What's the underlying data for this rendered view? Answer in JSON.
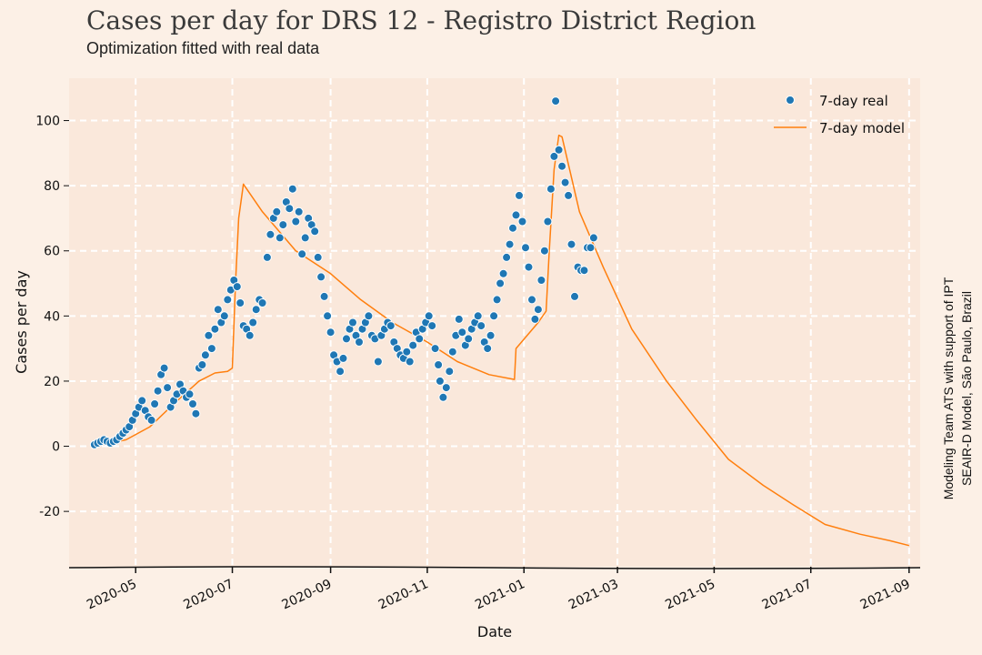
{
  "chart_data": {
    "type": "scatter",
    "title": "Cases per day for DRS 12 - Registro District Region",
    "subtitle": "Optimization fitted with real data",
    "xlabel": "Date",
    "ylabel": "Cases per day",
    "side_note": [
      "Modeling Team ATS with support of IPT",
      "SEAIR-D Model, São Paulo, Brazil"
    ],
    "xlim": [
      "2020-03-20",
      "2021-09-08"
    ],
    "ylim": [
      -37,
      113
    ],
    "x_ticks": [
      "2020-05",
      "2020-07",
      "2020-09",
      "2020-11",
      "2021-01",
      "2021-03",
      "2021-05",
      "2021-07",
      "2021-09"
    ],
    "y_ticks": [
      -20,
      0,
      20,
      40,
      60,
      80,
      100
    ],
    "grid": true,
    "legend_position": "top-right",
    "colors": {
      "real": "#1f77b4",
      "model": "#ff7f0e",
      "grid": "#ffffff",
      "plot_bg": "#fae8db",
      "page_bg": "#fcf0e6"
    },
    "series": [
      {
        "name": "7-day real",
        "kind": "scatter",
        "points": [
          [
            "2020-04-05",
            0.5
          ],
          [
            "2020-04-07",
            1
          ],
          [
            "2020-04-09",
            1.5
          ],
          [
            "2020-04-11",
            2
          ],
          [
            "2020-04-13",
            1.5
          ],
          [
            "2020-04-15",
            1
          ],
          [
            "2020-04-17",
            1.5
          ],
          [
            "2020-04-19",
            2
          ],
          [
            "2020-04-21",
            3
          ],
          [
            "2020-04-23",
            4
          ],
          [
            "2020-04-25",
            5
          ],
          [
            "2020-04-27",
            6
          ],
          [
            "2020-04-29",
            8
          ],
          [
            "2020-05-01",
            10
          ],
          [
            "2020-05-03",
            12
          ],
          [
            "2020-05-05",
            14
          ],
          [
            "2020-05-07",
            11
          ],
          [
            "2020-05-09",
            9
          ],
          [
            "2020-05-11",
            8
          ],
          [
            "2020-05-13",
            13
          ],
          [
            "2020-05-15",
            17
          ],
          [
            "2020-05-17",
            22
          ],
          [
            "2020-05-19",
            24
          ],
          [
            "2020-05-21",
            18
          ],
          [
            "2020-05-23",
            12
          ],
          [
            "2020-05-25",
            14
          ],
          [
            "2020-05-27",
            16
          ],
          [
            "2020-05-29",
            19
          ],
          [
            "2020-05-31",
            17
          ],
          [
            "2020-06-02",
            15
          ],
          [
            "2020-06-04",
            16
          ],
          [
            "2020-06-06",
            13
          ],
          [
            "2020-06-08",
            10
          ],
          [
            "2020-06-10",
            24
          ],
          [
            "2020-06-12",
            25
          ],
          [
            "2020-06-14",
            28
          ],
          [
            "2020-06-16",
            34
          ],
          [
            "2020-06-18",
            30
          ],
          [
            "2020-06-20",
            36
          ],
          [
            "2020-06-22",
            42
          ],
          [
            "2020-06-24",
            38
          ],
          [
            "2020-06-26",
            40
          ],
          [
            "2020-06-28",
            45
          ],
          [
            "2020-06-30",
            48
          ],
          [
            "2020-07-02",
            51
          ],
          [
            "2020-07-04",
            49
          ],
          [
            "2020-07-06",
            44
          ],
          [
            "2020-07-08",
            37
          ],
          [
            "2020-07-10",
            36
          ],
          [
            "2020-07-12",
            34
          ],
          [
            "2020-07-14",
            38
          ],
          [
            "2020-07-16",
            42
          ],
          [
            "2020-07-18",
            45
          ],
          [
            "2020-07-20",
            44
          ],
          [
            "2020-07-23",
            58
          ],
          [
            "2020-07-25",
            65
          ],
          [
            "2020-07-27",
            70
          ],
          [
            "2020-07-29",
            72
          ],
          [
            "2020-07-31",
            64
          ],
          [
            "2020-08-02",
            68
          ],
          [
            "2020-08-04",
            75
          ],
          [
            "2020-08-06",
            73
          ],
          [
            "2020-08-08",
            79
          ],
          [
            "2020-08-10",
            69
          ],
          [
            "2020-08-12",
            72
          ],
          [
            "2020-08-14",
            59
          ],
          [
            "2020-08-16",
            64
          ],
          [
            "2020-08-18",
            70
          ],
          [
            "2020-08-20",
            68
          ],
          [
            "2020-08-22",
            66
          ],
          [
            "2020-08-24",
            58
          ],
          [
            "2020-08-26",
            52
          ],
          [
            "2020-08-28",
            46
          ],
          [
            "2020-08-30",
            40
          ],
          [
            "2020-09-01",
            35
          ],
          [
            "2020-09-03",
            28
          ],
          [
            "2020-09-05",
            26
          ],
          [
            "2020-09-07",
            23
          ],
          [
            "2020-09-09",
            27
          ],
          [
            "2020-09-11",
            33
          ],
          [
            "2020-09-13",
            36
          ],
          [
            "2020-09-15",
            38
          ],
          [
            "2020-09-17",
            34
          ],
          [
            "2020-09-19",
            32
          ],
          [
            "2020-09-21",
            36
          ],
          [
            "2020-09-23",
            38
          ],
          [
            "2020-09-25",
            40
          ],
          [
            "2020-09-27",
            34
          ],
          [
            "2020-09-29",
            33
          ],
          [
            "2020-10-01",
            26
          ],
          [
            "2020-10-03",
            34
          ],
          [
            "2020-10-05",
            36
          ],
          [
            "2020-10-07",
            38
          ],
          [
            "2020-10-09",
            37
          ],
          [
            "2020-10-11",
            32
          ],
          [
            "2020-10-13",
            30
          ],
          [
            "2020-10-15",
            28
          ],
          [
            "2020-10-17",
            27
          ],
          [
            "2020-10-19",
            29
          ],
          [
            "2020-10-21",
            26
          ],
          [
            "2020-10-23",
            31
          ],
          [
            "2020-10-25",
            35
          ],
          [
            "2020-10-27",
            33
          ],
          [
            "2020-10-29",
            36
          ],
          [
            "2020-10-31",
            38
          ],
          [
            "2020-11-02",
            40
          ],
          [
            "2020-11-04",
            37
          ],
          [
            "2020-11-06",
            30
          ],
          [
            "2020-11-08",
            25
          ],
          [
            "2020-11-09",
            20
          ],
          [
            "2020-11-11",
            15
          ],
          [
            "2020-11-13",
            18
          ],
          [
            "2020-11-15",
            23
          ],
          [
            "2020-11-17",
            29
          ],
          [
            "2020-11-19",
            34
          ],
          [
            "2020-11-21",
            39
          ],
          [
            "2020-11-23",
            35
          ],
          [
            "2020-11-25",
            31
          ],
          [
            "2020-11-27",
            33
          ],
          [
            "2020-11-29",
            36
          ],
          [
            "2020-12-01",
            38
          ],
          [
            "2020-12-03",
            40
          ],
          [
            "2020-12-05",
            37
          ],
          [
            "2020-12-07",
            32
          ],
          [
            "2020-12-09",
            30
          ],
          [
            "2020-12-11",
            34
          ],
          [
            "2020-12-13",
            40
          ],
          [
            "2020-12-15",
            45
          ],
          [
            "2020-12-17",
            50
          ],
          [
            "2020-12-19",
            53
          ],
          [
            "2020-12-21",
            58
          ],
          [
            "2020-12-23",
            62
          ],
          [
            "2020-12-25",
            67
          ],
          [
            "2020-12-27",
            71
          ],
          [
            "2020-12-29",
            77
          ],
          [
            "2020-12-31",
            69
          ],
          [
            "2021-01-02",
            61
          ],
          [
            "2021-01-04",
            55
          ],
          [
            "2021-01-06",
            45
          ],
          [
            "2021-01-08",
            39
          ],
          [
            "2021-01-10",
            42
          ],
          [
            "2021-01-12",
            51
          ],
          [
            "2021-01-14",
            60
          ],
          [
            "2021-01-16",
            69
          ],
          [
            "2021-01-18",
            79
          ],
          [
            "2021-01-20",
            89
          ],
          [
            "2021-01-21",
            106
          ],
          [
            "2021-01-23",
            91
          ],
          [
            "2021-01-25",
            86
          ],
          [
            "2021-01-27",
            81
          ],
          [
            "2021-01-29",
            77
          ],
          [
            "2021-01-31",
            62
          ],
          [
            "2021-02-02",
            46
          ],
          [
            "2021-02-04",
            55
          ],
          [
            "2021-02-06",
            54
          ],
          [
            "2021-02-08",
            54
          ],
          [
            "2021-02-10",
            61
          ],
          [
            "2021-02-12",
            61
          ],
          [
            "2021-02-14",
            64
          ]
        ]
      },
      {
        "name": "7-day model",
        "kind": "line",
        "points": [
          [
            "2020-04-05",
            0
          ],
          [
            "2020-04-25",
            2
          ],
          [
            "2020-05-10",
            6
          ],
          [
            "2020-05-25",
            13
          ],
          [
            "2020-06-10",
            20
          ],
          [
            "2020-06-20",
            22.5
          ],
          [
            "2020-06-28",
            23
          ],
          [
            "2020-07-01",
            24
          ],
          [
            "2020-07-03",
            50
          ],
          [
            "2020-07-05",
            70
          ],
          [
            "2020-07-08",
            80.5
          ],
          [
            "2020-07-20",
            72
          ],
          [
            "2020-08-10",
            60
          ],
          [
            "2020-09-01",
            53
          ],
          [
            "2020-09-20",
            45
          ],
          [
            "2020-10-10",
            38
          ],
          [
            "2020-11-01",
            32
          ],
          [
            "2020-11-20",
            26
          ],
          [
            "2020-12-10",
            22
          ],
          [
            "2020-12-26",
            20.5
          ],
          [
            "2020-12-27",
            30
          ],
          [
            "2021-01-10",
            38
          ],
          [
            "2021-01-15",
            41.5
          ],
          [
            "2021-01-17",
            60
          ],
          [
            "2021-01-20",
            85
          ],
          [
            "2021-01-23",
            95.5
          ],
          [
            "2021-01-25",
            95
          ],
          [
            "2021-02-05",
            72
          ],
          [
            "2021-02-20",
            55
          ],
          [
            "2021-03-10",
            36
          ],
          [
            "2021-04-01",
            20
          ],
          [
            "2021-04-20",
            8
          ],
          [
            "2021-05-10",
            -4
          ],
          [
            "2021-06-01",
            -12
          ],
          [
            "2021-06-20",
            -18
          ],
          [
            "2021-07-10",
            -24
          ],
          [
            "2021-08-01",
            -27
          ],
          [
            "2021-08-20",
            -29
          ],
          [
            "2021-09-01",
            -30.5
          ]
        ]
      }
    ]
  }
}
